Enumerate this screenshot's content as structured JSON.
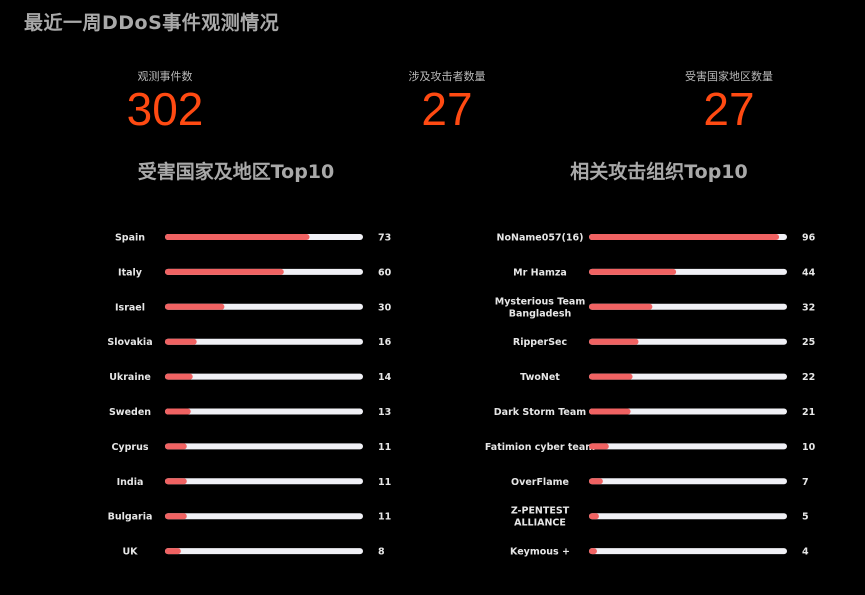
{
  "page_title": "最近一周DDoS事件观测情况",
  "stats": [
    {
      "label": "观测事件数",
      "value": "302"
    },
    {
      "label": "涉及攻击者数量",
      "value": "27"
    },
    {
      "label": "受害国家地区数量",
      "value": "27"
    }
  ],
  "colors": {
    "accent": "#ff4a12",
    "bar_fill": "#f06262",
    "bar_track": "#f0f0f5"
  },
  "chart_data": [
    {
      "type": "bar",
      "title": "受害国家及地区Top10",
      "categories": [
        "Spain",
        "Italy",
        "Israel",
        "Slovakia",
        "Ukraine",
        "Sweden",
        "Cyprus",
        "India",
        "Bulgaria",
        "UK"
      ],
      "values": [
        73,
        60,
        30,
        16,
        14,
        13,
        11,
        11,
        11,
        8
      ],
      "xlim": [
        0,
        100
      ],
      "grid": false
    },
    {
      "type": "bar",
      "title": "相关攻击组织Top10",
      "categories": [
        "NoName057(16)",
        "Mr Hamza",
        "Mysterious Team\nBangladesh",
        "RipperSec",
        "TwoNet",
        "Dark Storm Team",
        "Fatimion cyber team",
        "OverFlame",
        "Z-PENTEST\nALLIANCE",
        "Keymous +"
      ],
      "values": [
        96,
        44,
        32,
        25,
        22,
        21,
        10,
        7,
        5,
        4
      ],
      "xlim": [
        0,
        100
      ],
      "grid": false
    }
  ]
}
